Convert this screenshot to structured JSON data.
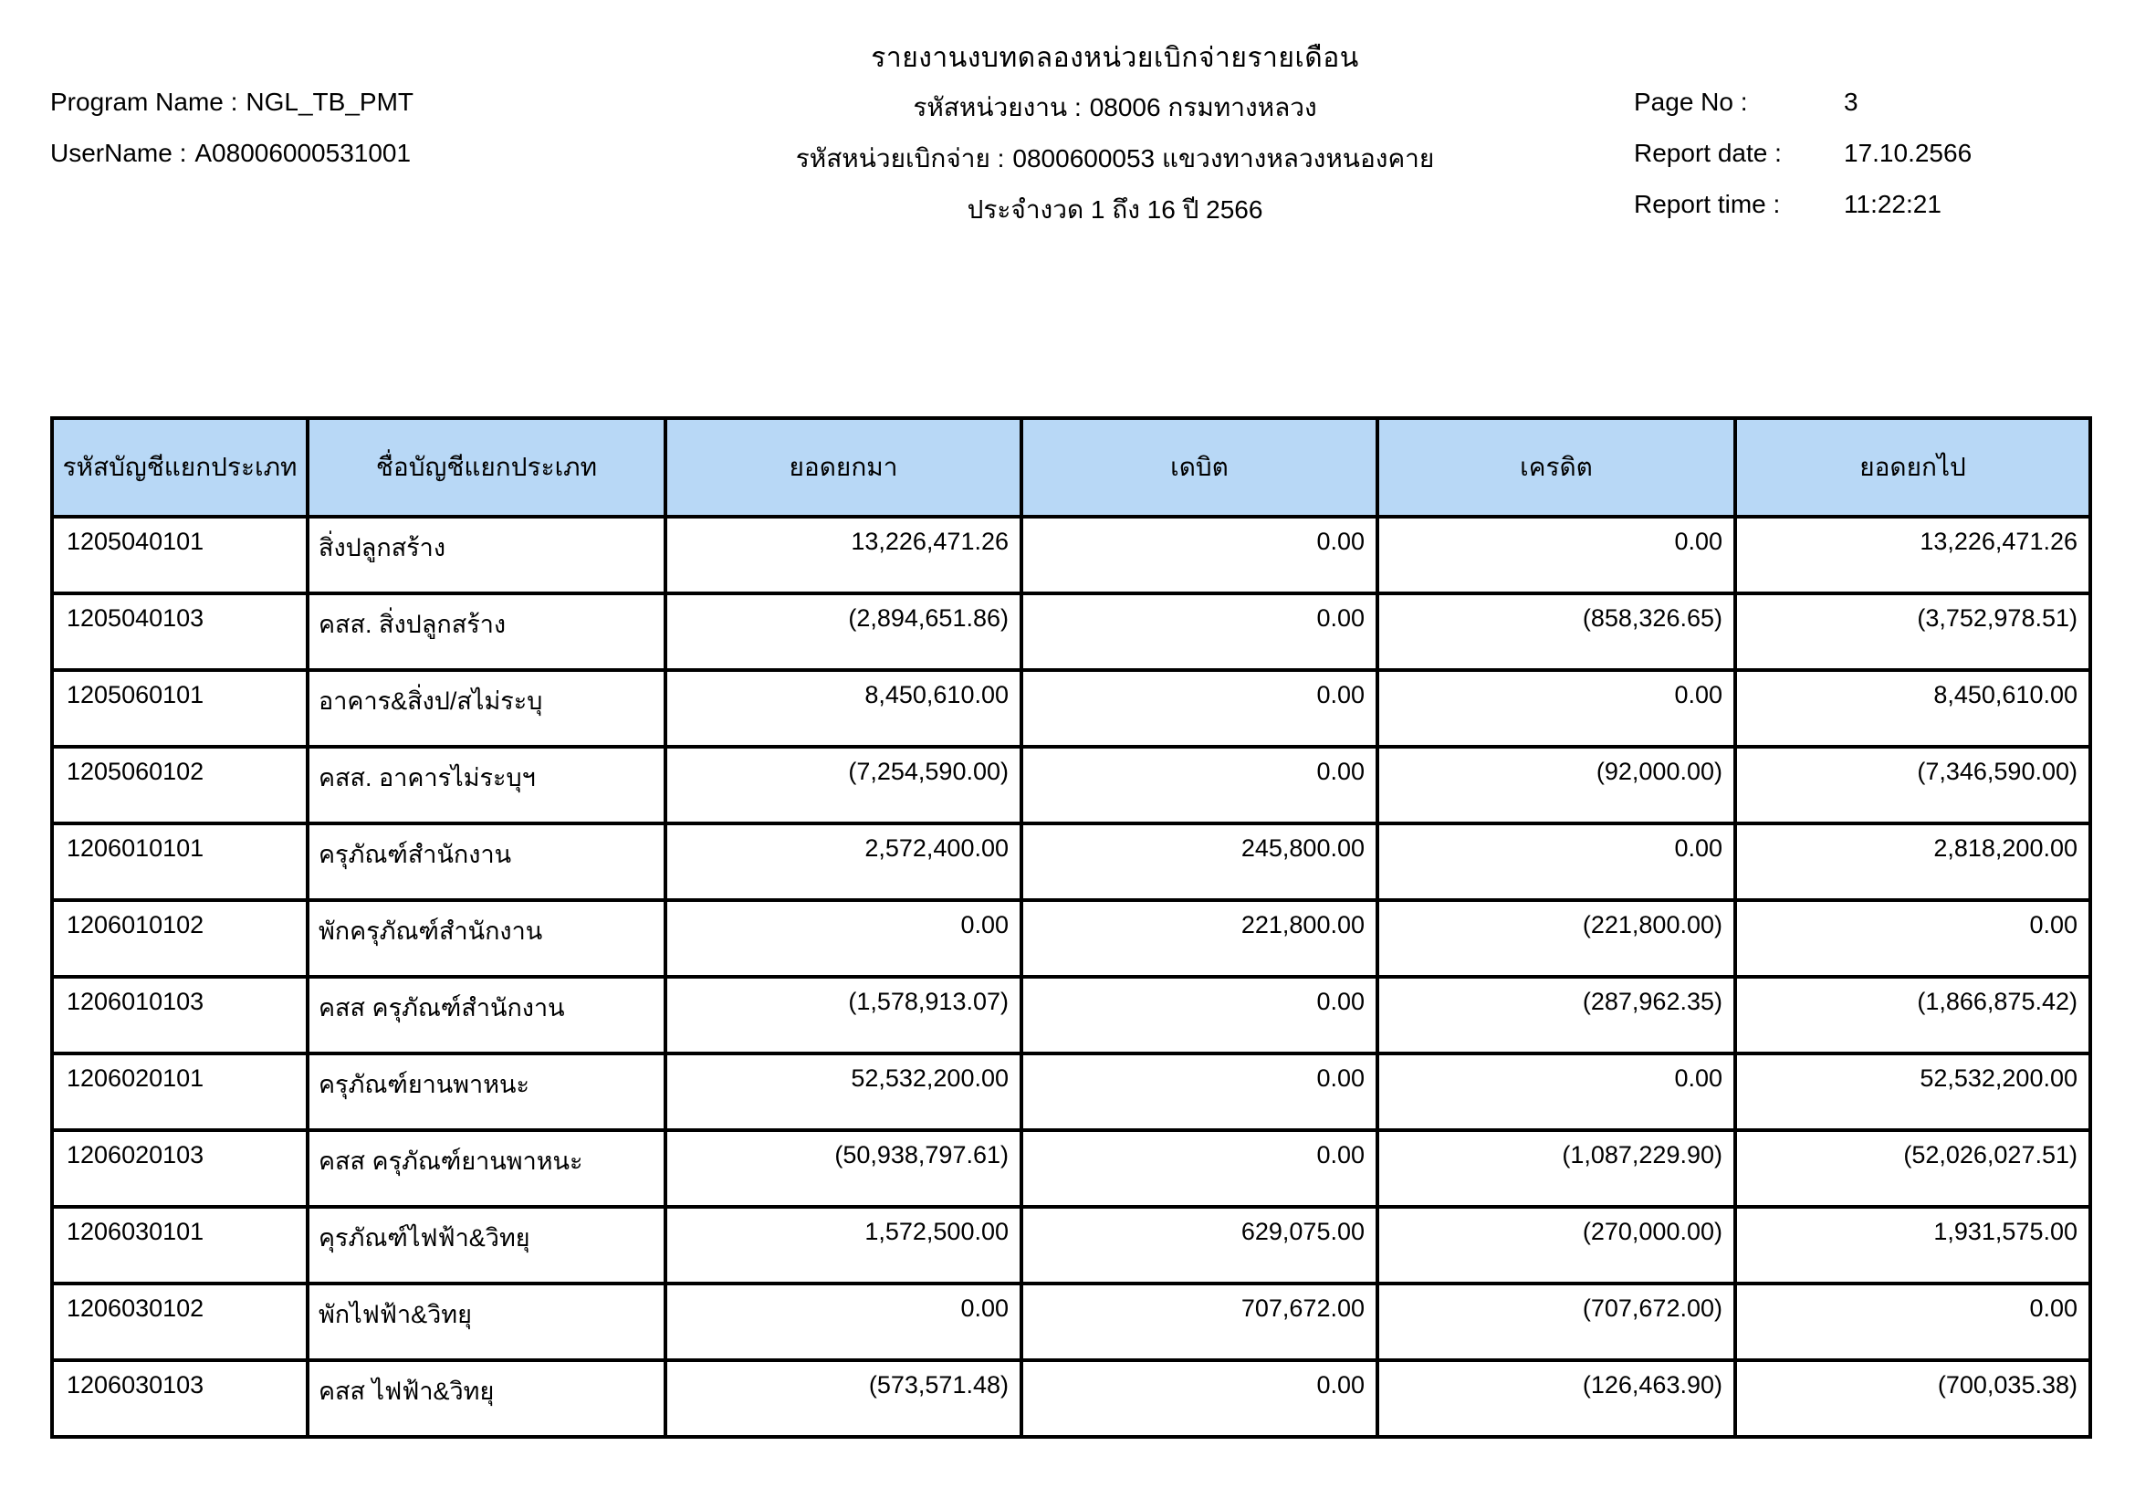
{
  "header": {
    "title": "รายงานงบทดลองหน่วยเบิกจ่ายรายเดือน",
    "program": {
      "label": "Program Name :",
      "value": "NGL_TB_PMT"
    },
    "username": {
      "label": "UserName :",
      "value": "A08006000531001"
    },
    "agency": {
      "label": "รหัสหน่วยงาน :",
      "value": "08006 กรมทางหลวง"
    },
    "disbursement_unit": {
      "label": "รหัสหน่วยเบิกจ่าย :",
      "value": "0800600053 แขวงทางหลวงหนองคาย"
    },
    "period": "ประจำงวด 1 ถึง 16 ปี 2566",
    "page_no": {
      "label": "Page No :",
      "value": "3"
    },
    "report_date": {
      "label": "Report date :",
      "value": "17.10.2566"
    },
    "report_time": {
      "label": "Report time :",
      "value": "11:22:21"
    }
  },
  "table": {
    "header_bg_color": "#b8d8f6",
    "border_color": "#000000",
    "columns": [
      "รหัสบัญชีแยกประเภท",
      "ชื่อบัญชีแยกประเภท",
      "ยอดยกมา",
      "เดบิต",
      "เครดิต",
      "ยอดยกไป"
    ],
    "rows": [
      [
        "1205040101",
        "สิ่งปลูกสร้าง",
        "13,226,471.26",
        "0.00",
        "0.00",
        "13,226,471.26"
      ],
      [
        "1205040103",
        "คสส. สิ่งปลูกสร้าง",
        "(2,894,651.86)",
        "0.00",
        "(858,326.65)",
        "(3,752,978.51)"
      ],
      [
        "1205060101",
        "อาคาร&สิ่งป/สไม่ระบุ",
        "8,450,610.00",
        "0.00",
        "0.00",
        "8,450,610.00"
      ],
      [
        "1205060102",
        "คสส. อาคารไม่ระบุฯ",
        "(7,254,590.00)",
        "0.00",
        "(92,000.00)",
        "(7,346,590.00)"
      ],
      [
        "1206010101",
        "ครุภัณฑ์สำนักงาน",
        "2,572,400.00",
        "245,800.00",
        "0.00",
        "2,818,200.00"
      ],
      [
        "1206010102",
        "พักครุภัณฑ์สำนักงาน",
        "0.00",
        "221,800.00",
        "(221,800.00)",
        "0.00"
      ],
      [
        "1206010103",
        "คสส ครุภัณฑ์สำนักงาน",
        "(1,578,913.07)",
        "0.00",
        "(287,962.35)",
        "(1,866,875.42)"
      ],
      [
        "1206020101",
        "ครุภัณฑ์ยานพาหนะ",
        "52,532,200.00",
        "0.00",
        "0.00",
        "52,532,200.00"
      ],
      [
        "1206020103",
        "คสส ครุภัณฑ์ยานพาหนะ",
        "(50,938,797.61)",
        "0.00",
        "(1,087,229.90)",
        "(52,026,027.51)"
      ],
      [
        "1206030101",
        "คุรภัณฑ์ไฟฟ้า&วิทยุ",
        "1,572,500.00",
        "629,075.00",
        "(270,000.00)",
        "1,931,575.00"
      ],
      [
        "1206030102",
        "พักไฟฟ้า&วิทยุ",
        "0.00",
        "707,672.00",
        "(707,672.00)",
        "0.00"
      ],
      [
        "1206030103",
        "คสส ไฟฟ้า&วิทยุ",
        "(573,571.48)",
        "0.00",
        "(126,463.90)",
        "(700,035.38)"
      ]
    ]
  }
}
